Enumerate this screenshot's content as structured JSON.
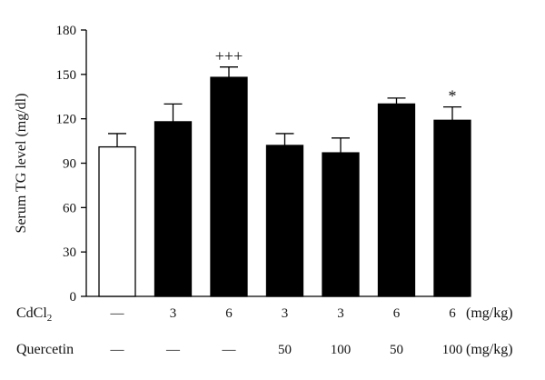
{
  "chart_data": {
    "type": "bar",
    "ylabel": "Serum TG level (mg/dl)",
    "ylim": [
      0,
      180
    ],
    "yticks": [
      0,
      30,
      60,
      90,
      120,
      150,
      180
    ],
    "grid": false,
    "values": [
      101,
      118,
      148,
      102,
      97,
      130,
      119
    ],
    "errors": [
      9,
      12,
      7,
      8,
      10,
      4,
      9
    ],
    "bar_fill": [
      "#ffffff",
      "#000000",
      "#000000",
      "#000000",
      "#000000",
      "#000000",
      "#000000"
    ],
    "annotations": [
      "",
      "",
      "+++",
      "",
      "",
      "",
      "*"
    ],
    "table_rows": [
      {
        "label_main": "CdCl",
        "label_sub": "2",
        "values": [
          "—",
          "3",
          "6",
          "3",
          "3",
          "6",
          "6"
        ],
        "unit": "(mg/kg)"
      },
      {
        "label_main": "Quercetin",
        "label_sub": "",
        "values": [
          "—",
          "—",
          "—",
          "50",
          "100",
          "50",
          "100"
        ],
        "unit": "(mg/kg)"
      }
    ]
  }
}
